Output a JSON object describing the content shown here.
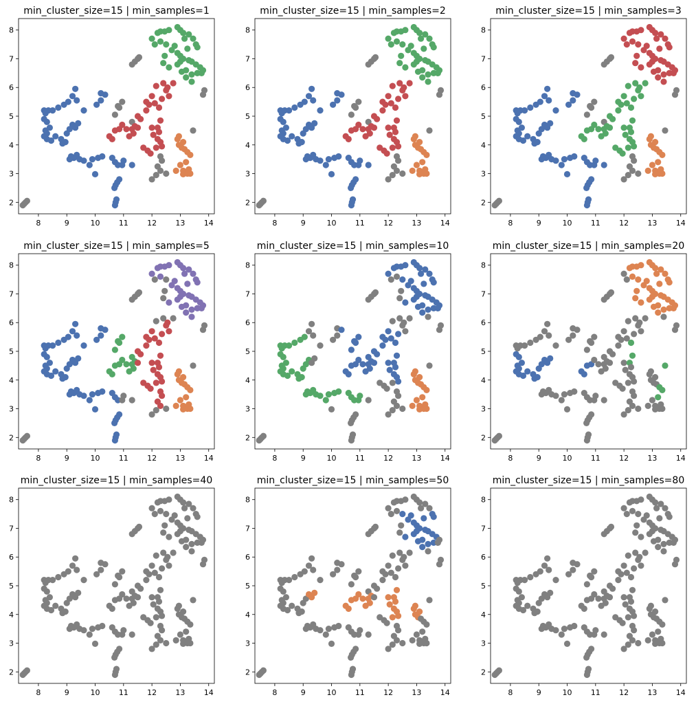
{
  "colors": {
    "noise": "#808080",
    "c0": "#4c72b0",
    "c1": "#dd8452",
    "c2": "#55a868",
    "c3": "#c44e52",
    "c4": "#8172b3"
  },
  "base_points": [
    [
      7.45,
      1.9
    ],
    [
      7.5,
      1.95
    ],
    [
      7.55,
      2.0
    ],
    [
      7.6,
      2.05
    ],
    [
      10.7,
      1.9
    ],
    [
      10.72,
      2.0
    ],
    [
      10.75,
      2.1
    ],
    [
      10.68,
      2.5
    ],
    [
      10.72,
      2.6
    ],
    [
      10.78,
      2.7
    ],
    [
      10.85,
      2.8
    ],
    [
      8.2,
      5.2
    ],
    [
      8.25,
      5.1
    ],
    [
      8.35,
      5.2
    ],
    [
      8.5,
      5.2
    ],
    [
      8.7,
      5.3
    ],
    [
      8.9,
      5.4
    ],
    [
      9.05,
      5.5
    ],
    [
      9.2,
      5.7
    ],
    [
      9.3,
      5.95
    ],
    [
      9.35,
      5.55
    ],
    [
      9.6,
      5.2
    ],
    [
      8.2,
      4.9
    ],
    [
      8.3,
      4.8
    ],
    [
      8.25,
      4.5
    ],
    [
      8.3,
      4.4
    ],
    [
      8.4,
      4.6
    ],
    [
      8.2,
      4.3
    ],
    [
      8.3,
      4.2
    ],
    [
      8.45,
      4.15
    ],
    [
      8.6,
      4.3
    ],
    [
      8.8,
      4.2
    ],
    [
      9.0,
      4.4
    ],
    [
      9.1,
      4.55
    ],
    [
      9.2,
      4.7
    ],
    [
      9.3,
      4.6
    ],
    [
      9.4,
      4.75
    ],
    [
      8.95,
      4.1
    ],
    [
      8.85,
      4.05
    ],
    [
      9.1,
      3.5
    ],
    [
      9.15,
      3.6
    ],
    [
      9.25,
      3.55
    ],
    [
      9.35,
      3.65
    ],
    [
      9.45,
      3.5
    ],
    [
      9.6,
      3.45
    ],
    [
      9.8,
      3.3
    ],
    [
      9.9,
      3.5
    ],
    [
      10.0,
      2.98
    ],
    [
      10.1,
      3.55
    ],
    [
      10.25,
      3.6
    ],
    [
      10.05,
      5.4
    ],
    [
      10.2,
      5.55
    ],
    [
      10.2,
      5.8
    ],
    [
      10.35,
      5.75
    ],
    [
      10.7,
      5.05
    ],
    [
      10.8,
      5.35
    ],
    [
      10.85,
      5.3
    ],
    [
      10.95,
      5.5
    ],
    [
      11.3,
      4.8
    ],
    [
      11.4,
      4.65
    ],
    [
      10.5,
      4.3
    ],
    [
      10.6,
      4.2
    ],
    [
      10.7,
      4.5
    ],
    [
      10.85,
      4.55
    ],
    [
      10.95,
      4.7
    ],
    [
      11.1,
      4.55
    ],
    [
      11.3,
      4.55
    ],
    [
      10.6,
      3.55
    ],
    [
      10.7,
      3.4
    ],
    [
      10.8,
      3.3
    ],
    [
      10.95,
      3.3
    ],
    [
      11.0,
      3.45
    ],
    [
      11.3,
      3.3
    ],
    [
      11.2,
      4.3
    ],
    [
      11.35,
      4.4
    ],
    [
      11.5,
      4.6
    ],
    [
      11.6,
      4.9
    ],
    [
      11.5,
      5.0
    ],
    [
      11.8,
      5.2
    ],
    [
      11.9,
      5.4
    ],
    [
      11.8,
      5.5
    ],
    [
      12.0,
      5.7
    ],
    [
      12.1,
      5.45
    ],
    [
      12.25,
      5.3
    ],
    [
      12.35,
      5.6
    ],
    [
      12.5,
      5.9
    ],
    [
      12.6,
      5.7
    ],
    [
      12.2,
      4.2
    ],
    [
      12.3,
      4.1
    ],
    [
      12.35,
      3.95
    ],
    [
      12.15,
      3.9
    ],
    [
      12.0,
      4.6
    ],
    [
      12.05,
      4.35
    ],
    [
      12.2,
      4.6
    ],
    [
      12.25,
      4.45
    ],
    [
      12.3,
      4.85
    ],
    [
      12.3,
      3.1
    ],
    [
      12.2,
      3.25
    ],
    [
      12.35,
      3.45
    ],
    [
      12.3,
      3.6
    ],
    [
      12.0,
      2.8
    ],
    [
      12.15,
      2.95
    ],
    [
      12.5,
      3.0
    ],
    [
      11.7,
      3.9
    ],
    [
      11.85,
      3.8
    ],
    [
      11.95,
      3.7
    ],
    [
      12.15,
      6.05
    ],
    [
      12.4,
      6.15
    ],
    [
      12.55,
      6.0
    ],
    [
      12.75,
      6.15
    ],
    [
      12.9,
      4.2
    ],
    [
      12.95,
      4.0
    ],
    [
      13.05,
      3.9
    ],
    [
      13.15,
      3.85
    ],
    [
      13.25,
      3.75
    ],
    [
      13.35,
      3.65
    ],
    [
      13.1,
      4.1
    ],
    [
      12.95,
      4.3
    ],
    [
      13.2,
      3.4
    ],
    [
      13.0,
      3.3
    ],
    [
      13.1,
      3.1
    ],
    [
      13.25,
      3.0
    ],
    [
      13.1,
      2.98
    ],
    [
      13.3,
      3.15
    ],
    [
      13.35,
      3.0
    ],
    [
      12.85,
      3.1
    ],
    [
      13.45,
      4.5
    ],
    [
      13.8,
      5.75
    ],
    [
      13.85,
      5.9
    ],
    [
      12.2,
      7.9
    ],
    [
      12.3,
      7.95
    ],
    [
      12.45,
      7.95
    ],
    [
      12.6,
      8.0
    ],
    [
      12.9,
      8.1
    ],
    [
      13.0,
      8.0
    ],
    [
      13.1,
      7.9
    ],
    [
      13.3,
      7.85
    ],
    [
      13.45,
      7.7
    ],
    [
      13.55,
      7.5
    ],
    [
      13.6,
      7.4
    ],
    [
      12.1,
      7.5
    ],
    [
      12.0,
      7.7
    ],
    [
      12.3,
      7.6
    ],
    [
      12.5,
      7.5
    ],
    [
      12.7,
      7.3
    ],
    [
      12.8,
      7.45
    ],
    [
      12.9,
      7.2
    ],
    [
      13.0,
      7.1
    ],
    [
      13.1,
      7.0
    ],
    [
      13.3,
      6.95
    ],
    [
      13.4,
      6.9
    ],
    [
      13.55,
      6.8
    ],
    [
      13.7,
      6.7
    ],
    [
      13.8,
      6.6
    ],
    [
      13.6,
      6.5
    ],
    [
      13.4,
      6.45
    ],
    [
      13.2,
      6.6
    ],
    [
      13.05,
      6.55
    ],
    [
      12.9,
      6.8
    ],
    [
      13.0,
      6.9
    ],
    [
      12.4,
      6.85
    ],
    [
      12.6,
      6.7
    ],
    [
      12.45,
      7.1
    ],
    [
      13.25,
      7.35
    ],
    [
      13.75,
      6.5
    ],
    [
      13.4,
      6.2
    ],
    [
      13.2,
      6.35
    ],
    [
      13.15,
      7.7
    ],
    [
      11.3,
      6.8
    ],
    [
      11.4,
      6.9
    ],
    [
      11.5,
      7.0
    ],
    [
      11.55,
      7.05
    ]
  ],
  "panels": [
    {
      "title": "min_cluster_size=15 | min_samples=1",
      "clusters": [
        {
          "color": "c2",
          "rect": [
            11.9,
            6.2,
            14.0,
            8.2
          ]
        },
        {
          "color": "c0",
          "rect": [
            8.0,
            2.4,
            10.3,
            6.0
          ]
        },
        {
          "color": "c0",
          "rect": [
            10.3,
            1.8,
            11.3,
            4.1
          ]
        },
        {
          "color": "c0",
          "rect": [
            10.0,
            5.3,
            10.4,
            5.9
          ]
        },
        {
          "color": "c3",
          "rect": [
            10.3,
            4.15,
            11.5,
            4.7
          ]
        },
        {
          "color": "c3",
          "rect": [
            11.45,
            3.7,
            12.4,
            6.2
          ]
        },
        {
          "color": "c3",
          "rect": [
            12.4,
            5.2,
            12.8,
            6.2
          ]
        },
        {
          "color": "c1",
          "rect": [
            12.8,
            2.9,
            13.4,
            4.4
          ]
        }
      ]
    },
    {
      "title": "min_cluster_size=15 | min_samples=2",
      "clusters": [
        {
          "color": "c2",
          "rect": [
            11.9,
            6.2,
            14.0,
            8.2
          ]
        },
        {
          "color": "c0",
          "rect": [
            8.0,
            2.4,
            10.3,
            6.0
          ]
        },
        {
          "color": "c0",
          "rect": [
            10.3,
            1.8,
            11.3,
            4.1
          ]
        },
        {
          "color": "c0",
          "rect": [
            10.0,
            5.3,
            10.4,
            5.9
          ]
        },
        {
          "color": "c3",
          "rect": [
            10.3,
            4.15,
            11.5,
            4.7
          ]
        },
        {
          "color": "c3",
          "rect": [
            11.45,
            3.7,
            12.4,
            6.2
          ]
        },
        {
          "color": "c3",
          "rect": [
            12.4,
            5.2,
            12.8,
            6.2
          ]
        },
        {
          "color": "c1",
          "rect": [
            12.8,
            2.9,
            13.4,
            4.4
          ]
        }
      ]
    },
    {
      "title": "min_cluster_size=15 | min_samples=3",
      "clusters": [
        {
          "color": "c3",
          "rect": [
            11.9,
            6.2,
            14.0,
            8.2
          ]
        },
        {
          "color": "c0",
          "rect": [
            8.0,
            2.4,
            10.3,
            6.0
          ]
        },
        {
          "color": "c0",
          "rect": [
            10.3,
            1.8,
            11.3,
            4.1
          ]
        },
        {
          "color": "c0",
          "rect": [
            10.0,
            5.3,
            10.4,
            5.9
          ]
        },
        {
          "color": "c2",
          "rect": [
            10.3,
            4.15,
            11.5,
            4.7
          ]
        },
        {
          "color": "c2",
          "rect": [
            11.45,
            3.7,
            12.4,
            6.2
          ]
        },
        {
          "color": "c2",
          "rect": [
            12.4,
            5.2,
            12.8,
            6.2
          ]
        },
        {
          "color": "c1",
          "rect": [
            12.8,
            2.9,
            13.4,
            4.4
          ]
        }
      ]
    },
    {
      "title": "min_cluster_size=15 | min_samples=5",
      "clusters": [
        {
          "color": "c4",
          "rect": [
            12.6,
            6.2,
            14.0,
            8.2
          ]
        },
        {
          "color": "c4",
          "rect": [
            12.0,
            7.6,
            12.7,
            8.2
          ]
        },
        {
          "color": "c0",
          "rect": [
            8.0,
            2.4,
            10.3,
            6.0
          ]
        },
        {
          "color": "c0",
          "rect": [
            10.3,
            1.8,
            10.9,
            3.7
          ]
        },
        {
          "color": "c0",
          "rect": [
            10.0,
            5.3,
            10.4,
            5.9
          ]
        },
        {
          "color": "c2",
          "rect": [
            10.4,
            4.15,
            11.4,
            5.6
          ]
        },
        {
          "color": "c3",
          "rect": [
            11.45,
            3.0,
            12.4,
            6.0
          ]
        },
        {
          "color": "c3",
          "rect": [
            12.4,
            5.2,
            12.8,
            6.1
          ]
        },
        {
          "color": "c1",
          "rect": [
            12.8,
            2.9,
            13.4,
            4.4
          ]
        }
      ]
    },
    {
      "title": "min_cluster_size=15 | min_samples=10",
      "clusters": [
        {
          "color": "c0",
          "rect": [
            12.5,
            6.3,
            14.0,
            8.2
          ]
        },
        {
          "color": "c0",
          "rect": [
            12.0,
            7.7,
            12.6,
            8.1
          ]
        },
        {
          "color": "c0",
          "rect": [
            10.3,
            4.15,
            12.5,
            5.8
          ]
        },
        {
          "color": "c0",
          "rect": [
            12.2,
            3.8,
            12.5,
            4.3
          ]
        },
        {
          "color": "c2",
          "rect": [
            8.0,
            3.2,
            9.2,
            5.6
          ]
        },
        {
          "color": "c2",
          "rect": [
            9.0,
            3.2,
            10.3,
            3.7
          ]
        },
        {
          "color": "c2",
          "rect": [
            10.5,
            3.2,
            11.0,
            3.8
          ]
        },
        {
          "color": "c1",
          "rect": [
            12.8,
            2.9,
            13.4,
            4.4
          ]
        }
      ]
    },
    {
      "title": "min_cluster_size=15 | min_samples=20",
      "clusters": [
        {
          "color": "c1",
          "rect": [
            12.2,
            6.3,
            13.9,
            8.2
          ]
        },
        {
          "color": "c0",
          "rect": [
            8.1,
            3.8,
            9.4,
            4.9
          ]
        },
        {
          "color": "c0",
          "rect": [
            10.5,
            4.0,
            11.0,
            4.6
          ]
        },
        {
          "color": "c2",
          "rect": [
            12.2,
            4.6,
            12.6,
            5.4
          ]
        },
        {
          "color": "c2",
          "rect": [
            13.2,
            3.3,
            13.5,
            4.6
          ]
        }
      ]
    },
    {
      "title": "min_cluster_size=15 | min_samples=40",
      "clusters": []
    },
    {
      "title": "min_cluster_size=15 | min_samples=50",
      "clusters": [
        {
          "color": "c0",
          "rect": [
            12.5,
            6.3,
            13.7,
            7.6
          ]
        },
        {
          "color": "c1",
          "rect": [
            9.2,
            4.3,
            9.7,
            4.8
          ]
        },
        {
          "color": "c1",
          "rect": [
            10.5,
            4.1,
            11.4,
            4.7
          ]
        },
        {
          "color": "c1",
          "rect": [
            11.8,
            3.9,
            12.5,
            5.1
          ]
        },
        {
          "color": "c1",
          "rect": [
            12.8,
            3.9,
            13.1,
            4.4
          ]
        }
      ]
    },
    {
      "title": "min_cluster_size=15 | min_samples=80",
      "clusters": []
    }
  ],
  "axes": {
    "xlim": [
      7.3,
      14.2
    ],
    "ylim": [
      1.6,
      8.4
    ],
    "xticks": [
      "8",
      "9",
      "10",
      "11",
      "12",
      "13",
      "14"
    ],
    "yticks": [
      "2",
      "3",
      "4",
      "5",
      "6",
      "7",
      "8"
    ]
  },
  "chart_data": {
    "type": "scatter",
    "xlim": [
      7.3,
      14.2
    ],
    "ylim": [
      1.6,
      8.4
    ],
    "grid": false,
    "panel_titles": [
      "min_cluster_size=15 | min_samples=1",
      "min_cluster_size=15 | min_samples=2",
      "min_cluster_size=15 | min_samples=3",
      "min_cluster_size=15 | min_samples=5",
      "min_cluster_size=15 | min_samples=10",
      "min_cluster_size=15 | min_samples=20",
      "min_cluster_size=15 | min_samples=40",
      "min_cluster_size=15 | min_samples=50",
      "min_cluster_size=15 | min_samples=80"
    ],
    "xticks": [
      8,
      9,
      10,
      11,
      12,
      13,
      14
    ],
    "yticks": [
      2,
      3,
      4,
      5,
      6,
      7,
      8
    ]
  }
}
